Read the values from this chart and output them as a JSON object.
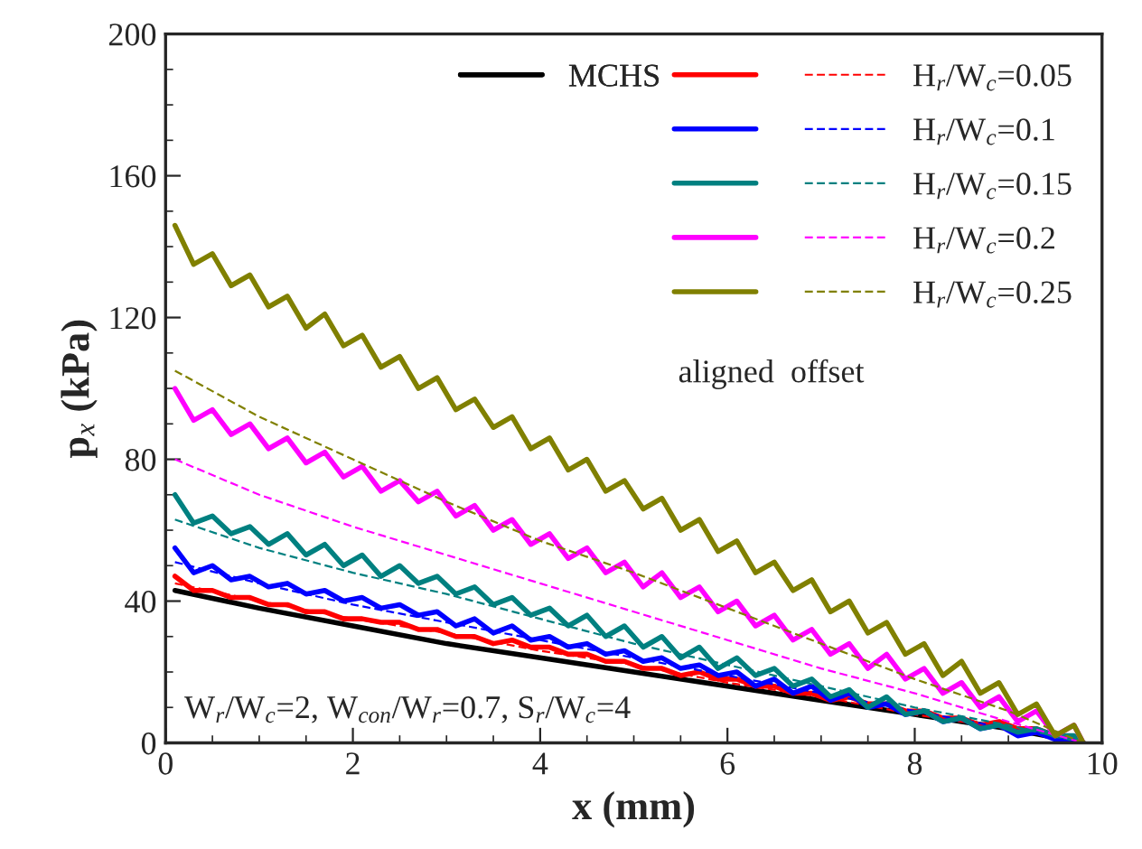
{
  "chart_data": {
    "type": "line",
    "xlabel": "x (mm)",
    "ylabel": "p$_{x}$ (kPa)",
    "xlim": [
      0,
      10
    ],
    "xticks": [
      0,
      2,
      4,
      6,
      8,
      10
    ],
    "ylim": [
      0,
      200
    ],
    "yticks": [
      0,
      40,
      80,
      120,
      160,
      200
    ],
    "grid": false,
    "legend": "top right",
    "marker": "none",
    "x": [
      0.1,
      0.3,
      0.5,
      0.7,
      0.9,
      1.1,
      1.3,
      1.5,
      1.7,
      1.9,
      2.1,
      2.3,
      2.5,
      2.7,
      2.9,
      3.1,
      3.3,
      3.5,
      3.7,
      3.9,
      4.1,
      4.3,
      4.5,
      4.7,
      4.9,
      5.1,
      5.3,
      5.5,
      5.7,
      5.9,
      6.1,
      6.3,
      6.5,
      6.7,
      6.9,
      7.1,
      7.3,
      7.5,
      7.7,
      7.9,
      8.1,
      8.3,
      8.5,
      8.7,
      8.9,
      9.1,
      9.3,
      9.5,
      9.7,
      9.8
    ],
    "series": [
      {
        "name": "MCHS",
        "color": "#000000",
        "line_style": "solid",
        "x": [
          0.1,
          1,
          2,
          3,
          4,
          5,
          6,
          7,
          8,
          9,
          9.8
        ],
        "values": [
          43,
          38,
          33,
          28,
          24,
          20,
          16,
          12,
          8,
          4,
          0
        ]
      },
      {
        "name": "H$_{r}$/W$_{c}$=0.05",
        "color": "#ff0000",
        "line_style": "solid",
        "values": [
          47,
          43,
          43,
          41,
          41,
          39,
          39,
          37,
          37,
          35,
          35,
          34,
          34,
          32,
          32,
          30,
          30,
          28,
          29,
          27,
          27,
          25,
          25,
          23,
          23,
          21,
          21,
          19,
          20,
          18,
          18,
          16,
          16,
          14,
          14,
          12,
          13,
          11,
          11,
          9,
          9,
          7,
          7,
          5,
          6,
          4,
          4,
          2,
          null,
          null
        ]
      },
      {
        "color": "#ff0000",
        "line_style": "dashed",
        "x": [
          0.1,
          1,
          2,
          3,
          4,
          5,
          6,
          7,
          8,
          9,
          9.8
        ],
        "values": [
          45,
          40,
          35,
          31,
          26,
          22,
          17,
          13,
          8,
          4,
          0
        ]
      },
      {
        "name": "H$_{r}$/W$_{c}$=0.1",
        "color": "#0000ff",
        "line_style": "solid",
        "values": [
          55,
          48,
          50,
          46,
          47,
          44,
          45,
          42,
          43,
          40,
          41,
          38,
          39,
          36,
          37,
          33,
          35,
          31,
          33,
          29,
          30,
          27,
          28,
          25,
          26,
          23,
          24,
          21,
          22,
          19,
          20,
          16,
          18,
          14,
          16,
          12,
          14,
          10,
          11,
          8,
          9,
          6,
          7,
          4,
          5,
          2,
          3,
          1,
          1,
          0
        ]
      },
      {
        "color": "#0000ff",
        "line_style": "dashed",
        "x": [
          0.1,
          1,
          2,
          3,
          4,
          5,
          6,
          7,
          8,
          9,
          9.8
        ],
        "values": [
          51,
          45,
          39,
          34,
          29,
          24,
          19,
          14,
          9,
          4,
          0
        ]
      },
      {
        "name": "H$_{r}$/W$_{c}$=0.15",
        "color": "#008080",
        "line_style": "solid",
        "values": [
          70,
          62,
          64,
          59,
          61,
          56,
          59,
          53,
          56,
          50,
          53,
          47,
          50,
          45,
          47,
          42,
          44,
          39,
          41,
          36,
          38,
          33,
          36,
          30,
          33,
          27,
          30,
          24,
          27,
          21,
          24,
          19,
          21,
          16,
          18,
          13,
          15,
          10,
          13,
          8,
          9,
          6,
          7,
          4,
          5,
          3,
          4,
          2,
          2,
          0
        ]
      },
      {
        "color": "#008080",
        "line_style": "dashed",
        "x": [
          0.1,
          1,
          2,
          3,
          4,
          5,
          6,
          7,
          8,
          9,
          9.8
        ],
        "values": [
          63,
          55,
          48,
          42,
          35,
          28,
          22,
          16,
          10,
          5,
          0
        ]
      },
      {
        "name": "H$_{r}$/W$_{c}$=0.2",
        "color": "#ff00ff",
        "line_style": "solid",
        "values": [
          100,
          91,
          94,
          87,
          90,
          83,
          86,
          79,
          82,
          75,
          78,
          71,
          74,
          68,
          71,
          64,
          67,
          60,
          63,
          56,
          59,
          52,
          55,
          48,
          51,
          44,
          48,
          41,
          44,
          37,
          40,
          33,
          36,
          29,
          32,
          25,
          28,
          21,
          25,
          18,
          21,
          14,
          17,
          10,
          13,
          6,
          9,
          2,
          5,
          0
        ]
      },
      {
        "color": "#ff00ff",
        "line_style": "dashed",
        "x": [
          0.1,
          1,
          2,
          3,
          4,
          5,
          6,
          7,
          8,
          9,
          9.8
        ],
        "values": [
          80,
          70,
          61,
          53,
          45,
          37,
          29,
          21,
          14,
          6,
          0
        ]
      },
      {
        "name": "H$_{r}$/W$_{c}$=0.25",
        "color": "#808000",
        "line_style": "solid",
        "values": [
          146,
          135,
          138,
          129,
          132,
          123,
          126,
          117,
          121,
          112,
          115,
          106,
          109,
          100,
          103,
          94,
          97,
          89,
          92,
          83,
          86,
          77,
          80,
          71,
          74,
          66,
          69,
          60,
          63,
          54,
          57,
          48,
          51,
          43,
          46,
          37,
          40,
          31,
          34,
          25,
          28,
          19,
          23,
          14,
          17,
          8,
          11,
          2,
          5,
          0
        ]
      },
      {
        "color": "#808000",
        "line_style": "dashed",
        "x": [
          0.1,
          1,
          2,
          3,
          4,
          5,
          6,
          7,
          8,
          9,
          9.8
        ],
        "values": [
          105,
          92,
          80,
          68,
          57,
          48,
          38,
          28,
          18,
          9,
          0
        ]
      }
    ],
    "legend_title": "aligned  offset",
    "annotations": [
      "W$_{r}$/W$_{c}$=2, W$_{con}$/W$_{r}$=0.7, S$_{r}$/W$_{c}$=4"
    ]
  }
}
